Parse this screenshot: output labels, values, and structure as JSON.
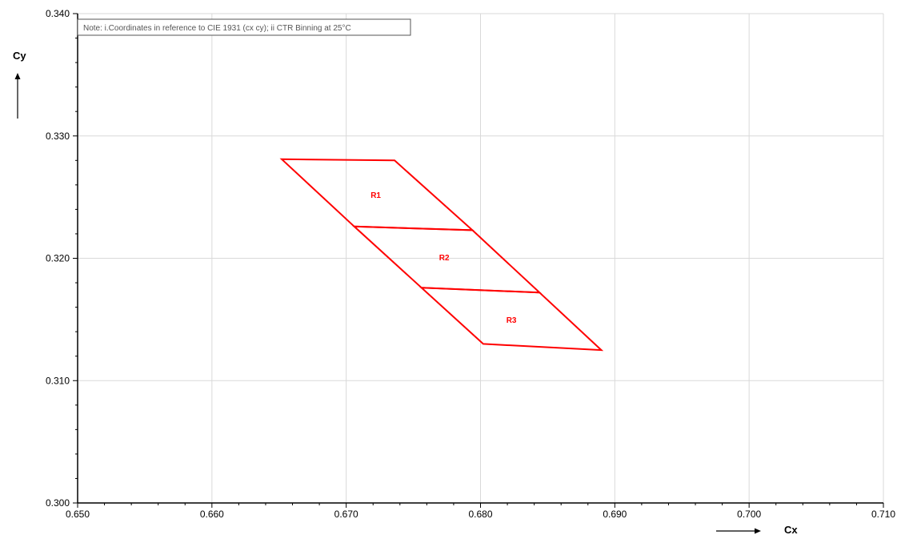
{
  "chart_data": {
    "type": "line",
    "title": "",
    "xlabel": "Cx",
    "ylabel": "Cy",
    "xlim": [
      0.65,
      0.71
    ],
    "ylim": [
      0.3,
      0.34
    ],
    "x_ticks": [
      0.65,
      0.66,
      0.67,
      0.68,
      0.69,
      0.7,
      0.71
    ],
    "y_ticks": [
      0.3,
      0.31,
      0.32,
      0.33,
      0.34
    ],
    "x_tick_labels": [
      "0.650",
      "0.660",
      "0.670",
      "0.680",
      "0.690",
      "0.700",
      "0.710"
    ],
    "y_tick_labels": [
      "0.300",
      "0.310",
      "0.320",
      "0.330",
      "0.340"
    ],
    "grid": true,
    "note": "Note: i.Coordinates in reference to CIE 1931 (cx cy); ii CTR Binning at 25°C",
    "color": "#ff0000",
    "regions": [
      {
        "name": "R1",
        "label_at": [
          0.6722,
          0.3252
        ],
        "points": [
          [
            0.6652,
            0.3281
          ],
          [
            0.6736,
            0.328
          ],
          [
            0.6794,
            0.3223
          ],
          [
            0.6706,
            0.3226
          ]
        ]
      },
      {
        "name": "R2",
        "label_at": [
          0.6773,
          0.3201
        ],
        "points": [
          [
            0.6706,
            0.3226
          ],
          [
            0.6794,
            0.3223
          ],
          [
            0.6844,
            0.3172
          ],
          [
            0.6756,
            0.3176
          ]
        ]
      },
      {
        "name": "R3",
        "label_at": [
          0.6823,
          0.315
        ],
        "points": [
          [
            0.6756,
            0.3176
          ],
          [
            0.6844,
            0.3172
          ],
          [
            0.689,
            0.3125
          ],
          [
            0.6802,
            0.313
          ]
        ]
      }
    ]
  }
}
